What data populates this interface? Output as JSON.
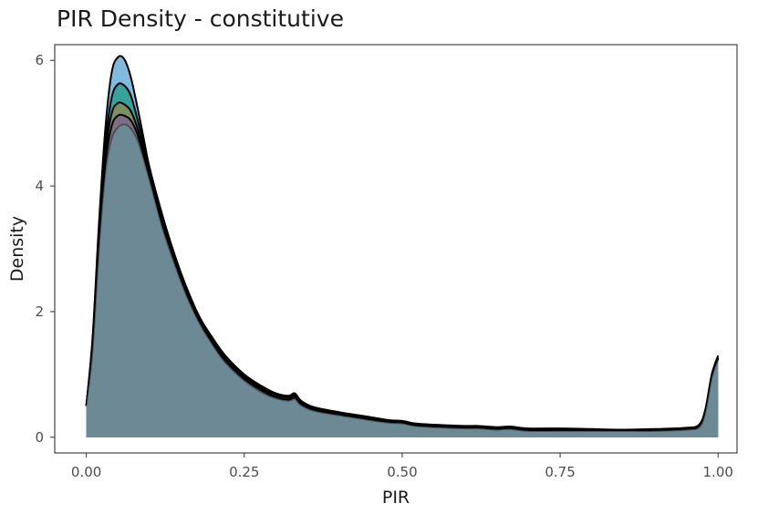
{
  "chart_data": {
    "type": "area",
    "title": "PIR Density - constitutive",
    "xlabel": "PIR",
    "ylabel": "Density",
    "xlim": [
      -0.05,
      1.03
    ],
    "ylim": [
      -0.25,
      6.25
    ],
    "x_ticks": [
      0,
      0.25,
      0.5,
      0.75,
      1
    ],
    "x_tick_labels": [
      "0.00",
      "0.25",
      "0.50",
      "0.75",
      "1.00"
    ],
    "y_ticks": [
      0,
      2,
      4,
      6
    ],
    "y_tick_labels": [
      "0",
      "2",
      "4",
      "6"
    ],
    "grid": false,
    "legend": "none",
    "x": [
      0.0,
      0.01,
      0.02,
      0.03,
      0.04,
      0.05,
      0.06,
      0.07,
      0.08,
      0.09,
      0.1,
      0.12,
      0.14,
      0.16,
      0.18,
      0.2,
      0.22,
      0.25,
      0.28,
      0.3,
      0.32,
      0.33,
      0.34,
      0.36,
      0.4,
      0.45,
      0.48,
      0.5,
      0.52,
      0.55,
      0.6,
      0.62,
      0.65,
      0.67,
      0.7,
      0.75,
      0.8,
      0.85,
      0.9,
      0.95,
      0.97,
      0.98,
      0.99,
      1.0
    ],
    "series": [
      {
        "color": "#6baed6",
        "values": [
          0.5,
          1.6,
          3.4,
          4.9,
          5.8,
          6.05,
          6.02,
          5.75,
          5.3,
          4.8,
          4.3,
          3.55,
          2.9,
          2.35,
          1.9,
          1.58,
          1.3,
          1.0,
          0.8,
          0.7,
          0.66,
          0.7,
          0.58,
          0.48,
          0.4,
          0.32,
          0.27,
          0.26,
          0.22,
          0.2,
          0.18,
          0.18,
          0.16,
          0.17,
          0.14,
          0.14,
          0.13,
          0.12,
          0.13,
          0.15,
          0.2,
          0.45,
          1.0,
          1.3
        ]
      },
      {
        "color": "#2a9d8f",
        "values": [
          0.5,
          1.55,
          3.3,
          4.65,
          5.4,
          5.62,
          5.6,
          5.45,
          5.1,
          4.7,
          4.25,
          3.5,
          2.88,
          2.33,
          1.88,
          1.56,
          1.28,
          0.98,
          0.78,
          0.69,
          0.65,
          0.68,
          0.57,
          0.47,
          0.39,
          0.31,
          0.26,
          0.25,
          0.21,
          0.19,
          0.17,
          0.17,
          0.15,
          0.16,
          0.13,
          0.13,
          0.12,
          0.11,
          0.12,
          0.14,
          0.19,
          0.43,
          0.98,
          1.28
        ]
      },
      {
        "color": "#8c8c5a",
        "values": [
          0.5,
          1.5,
          3.2,
          4.5,
          5.15,
          5.32,
          5.3,
          5.2,
          4.95,
          4.6,
          4.2,
          3.45,
          2.85,
          2.3,
          1.86,
          1.54,
          1.26,
          0.96,
          0.76,
          0.67,
          0.63,
          0.66,
          0.55,
          0.46,
          0.38,
          0.3,
          0.25,
          0.24,
          0.2,
          0.18,
          0.16,
          0.16,
          0.14,
          0.15,
          0.12,
          0.12,
          0.11,
          0.1,
          0.11,
          0.13,
          0.18,
          0.42,
          0.96,
          1.26
        ]
      },
      {
        "color": "#7e6a8a",
        "values": [
          0.5,
          1.45,
          3.1,
          4.35,
          4.95,
          5.12,
          5.12,
          5.05,
          4.85,
          4.52,
          4.15,
          3.4,
          2.8,
          2.26,
          1.83,
          1.5,
          1.22,
          0.93,
          0.73,
          0.64,
          0.6,
          0.63,
          0.53,
          0.44,
          0.36,
          0.28,
          0.24,
          0.23,
          0.19,
          0.17,
          0.15,
          0.15,
          0.13,
          0.14,
          0.11,
          0.11,
          0.1,
          0.1,
          0.1,
          0.12,
          0.17,
          0.41,
          0.95,
          1.25
        ]
      },
      {
        "color": "#6c8a96",
        "values": [
          0.5,
          1.4,
          3.0,
          4.2,
          4.75,
          4.93,
          4.98,
          4.92,
          4.75,
          4.45,
          4.1,
          3.35,
          2.75,
          2.22,
          1.8,
          1.47,
          1.19,
          0.9,
          0.7,
          0.62,
          0.58,
          0.61,
          0.51,
          0.42,
          0.35,
          0.27,
          0.23,
          0.22,
          0.18,
          0.16,
          0.14,
          0.14,
          0.12,
          0.13,
          0.1,
          0.1,
          0.1,
          0.1,
          0.1,
          0.12,
          0.16,
          0.4,
          0.94,
          1.24
        ]
      }
    ]
  }
}
